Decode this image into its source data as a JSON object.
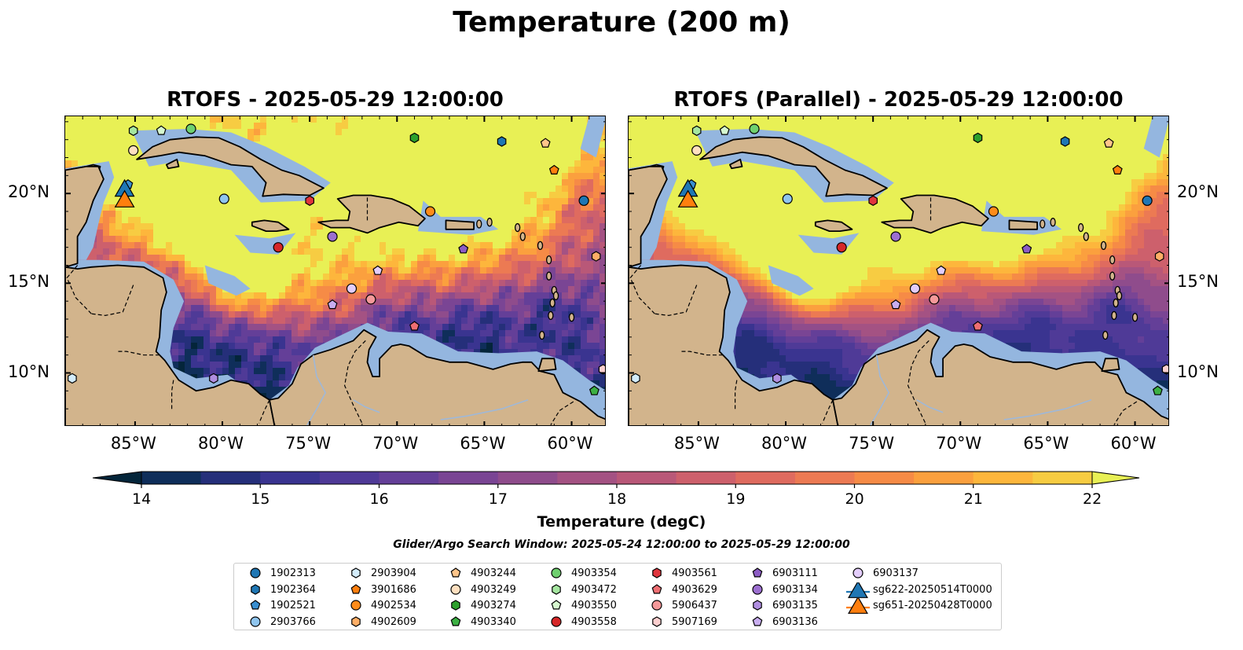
{
  "title": "Temperature (200 m)",
  "maps": [
    {
      "title": "RTOFS - 2025-05-29 12:00:00"
    },
    {
      "title": "RTOFS (Parallel) - 2025-05-29 12:00:00"
    }
  ],
  "axes": {
    "x_ticks": [
      "85°W",
      "80°W",
      "75°W",
      "70°W",
      "65°W",
      "60°W"
    ],
    "y_ticks": [
      "20°N",
      "15°N",
      "10°N"
    ],
    "lon_range": [
      -89,
      -58
    ],
    "lat_range": [
      7,
      24.3
    ]
  },
  "colorbar": {
    "label": "Temperature (degC)",
    "ticks": [
      "14",
      "15",
      "16",
      "17",
      "18",
      "19",
      "20",
      "21",
      "22"
    ],
    "range": [
      14,
      22
    ],
    "extend": "both",
    "colormap": [
      "#04253a",
      "#0f2e5a",
      "#252f7a",
      "#3a3490",
      "#4f3a97",
      "#643f98",
      "#7a4594",
      "#8f4c8c",
      "#a45283",
      "#b95878",
      "#cd606c",
      "#df6b5f",
      "#ec7a53",
      "#f68b46",
      "#fba03e",
      "#fdb63c",
      "#f7cc42",
      "#e8f055"
    ]
  },
  "search_window": "Glider/Argo Search Window: 2025-05-24 12:00:00 to 2025-05-29 12:00:00",
  "legend": [
    {
      "label": "1902313",
      "marker": "circle",
      "color": "#1f77b4"
    },
    {
      "label": "1902364",
      "marker": "hexagon",
      "color": "#1f77b4"
    },
    {
      "label": "1902521",
      "marker": "pentagon",
      "color": "#3a8fd0"
    },
    {
      "label": "2903766",
      "marker": "circle",
      "color": "#8fc5ee"
    },
    {
      "label": "2903904",
      "marker": "hexagon",
      "color": "#d3ecfb"
    },
    {
      "label": "3901686",
      "marker": "pentagon",
      "color": "#ff7f0e"
    },
    {
      "label": "4902534",
      "marker": "circle",
      "color": "#ff8c1a"
    },
    {
      "label": "4902609",
      "marker": "hexagon",
      "color": "#ffae66"
    },
    {
      "label": "4903244",
      "marker": "pentagon",
      "color": "#ffc58a"
    },
    {
      "label": "4903249",
      "marker": "circle",
      "color": "#ffe0c0"
    },
    {
      "label": "4903274",
      "marker": "hexagon",
      "color": "#2ca02c"
    },
    {
      "label": "4903340",
      "marker": "pentagon",
      "color": "#3cb043"
    },
    {
      "label": "4903354",
      "marker": "circle",
      "color": "#6fd06f"
    },
    {
      "label": "4903472",
      "marker": "hexagon",
      "color": "#a5e6a0"
    },
    {
      "label": "4903550",
      "marker": "pentagon",
      "color": "#d6f7cf"
    },
    {
      "label": "4903558",
      "marker": "circle",
      "color": "#d62728"
    },
    {
      "label": "4903561",
      "marker": "hexagon",
      "color": "#e0353d"
    },
    {
      "label": "4903629",
      "marker": "pentagon",
      "color": "#ee6e72"
    },
    {
      "label": "5906437",
      "marker": "circle",
      "color": "#f5999a"
    },
    {
      "label": "5907169",
      "marker": "hexagon",
      "color": "#fccfcf"
    },
    {
      "label": "6903111",
      "marker": "pentagon",
      "color": "#8c5cc4"
    },
    {
      "label": "6903134",
      "marker": "circle",
      "color": "#9c6fd0"
    },
    {
      "label": "6903135",
      "marker": "hexagon",
      "color": "#b08ee0"
    },
    {
      "label": "6903136",
      "marker": "pentagon",
      "color": "#c9aef0"
    },
    {
      "label": "6903137",
      "marker": "circle",
      "color": "#e3cdfb"
    },
    {
      "label": "sg622-20250514T0000",
      "marker": "triangle",
      "color": "#1f77b4"
    },
    {
      "label": "sg651-20250428T0000",
      "marker": "triangle",
      "color": "#ff7f0e"
    }
  ],
  "floats": [
    {
      "id": "1902313",
      "lon": -59.3,
      "lat": 19.6
    },
    {
      "id": "1902364",
      "lon": -64.0,
      "lat": 22.9
    },
    {
      "id": "1902521",
      "lon": -85.4,
      "lat": 20.5
    },
    {
      "id": "2903766",
      "lon": -79.9,
      "lat": 19.7
    },
    {
      "id": "2903904",
      "lon": -88.6,
      "lat": 9.7
    },
    {
      "id": "3901686",
      "lon": -61.0,
      "lat": 21.3
    },
    {
      "id": "4902534",
      "lon": -68.1,
      "lat": 19.0
    },
    {
      "id": "4902609",
      "lon": -58.6,
      "lat": 16.5
    },
    {
      "id": "4903244",
      "lon": -61.5,
      "lat": 22.8
    },
    {
      "id": "4903249",
      "lon": -85.1,
      "lat": 22.4
    },
    {
      "id": "4903274",
      "lon": -69.0,
      "lat": 23.1
    },
    {
      "id": "4903340",
      "lon": -58.7,
      "lat": 9.0
    },
    {
      "id": "4903354",
      "lon": -81.8,
      "lat": 23.6
    },
    {
      "id": "4903472",
      "lon": -85.1,
      "lat": 23.5
    },
    {
      "id": "4903550",
      "lon": -83.5,
      "lat": 23.5
    },
    {
      "id": "4903558",
      "lon": -76.8,
      "lat": 17.0
    },
    {
      "id": "4903561",
      "lon": -75.0,
      "lat": 19.6
    },
    {
      "id": "4903629",
      "lon": -69.0,
      "lat": 12.6
    },
    {
      "id": "5906437",
      "lon": -71.5,
      "lat": 14.1
    },
    {
      "id": "5907169",
      "lon": -58.2,
      "lat": 10.2
    },
    {
      "id": "6903111",
      "lon": -66.2,
      "lat": 16.9
    },
    {
      "id": "6903134",
      "lon": -73.7,
      "lat": 17.6
    },
    {
      "id": "6903135",
      "lon": -80.5,
      "lat": 9.7
    },
    {
      "id": "6903136",
      "lon": -73.7,
      "lat": 13.8
    },
    {
      "id": "6903137",
      "lon": -72.6,
      "lat": 14.7
    },
    {
      "id": "6903137b",
      "lon": -71.1,
      "lat": 15.7
    }
  ],
  "gliders": [
    {
      "id": "sg622-20250514T0000",
      "lon": -85.6,
      "lat": 20.3
    },
    {
      "id": "sg651-20250428T0000",
      "lon": -85.6,
      "lat": 19.7
    }
  ]
}
